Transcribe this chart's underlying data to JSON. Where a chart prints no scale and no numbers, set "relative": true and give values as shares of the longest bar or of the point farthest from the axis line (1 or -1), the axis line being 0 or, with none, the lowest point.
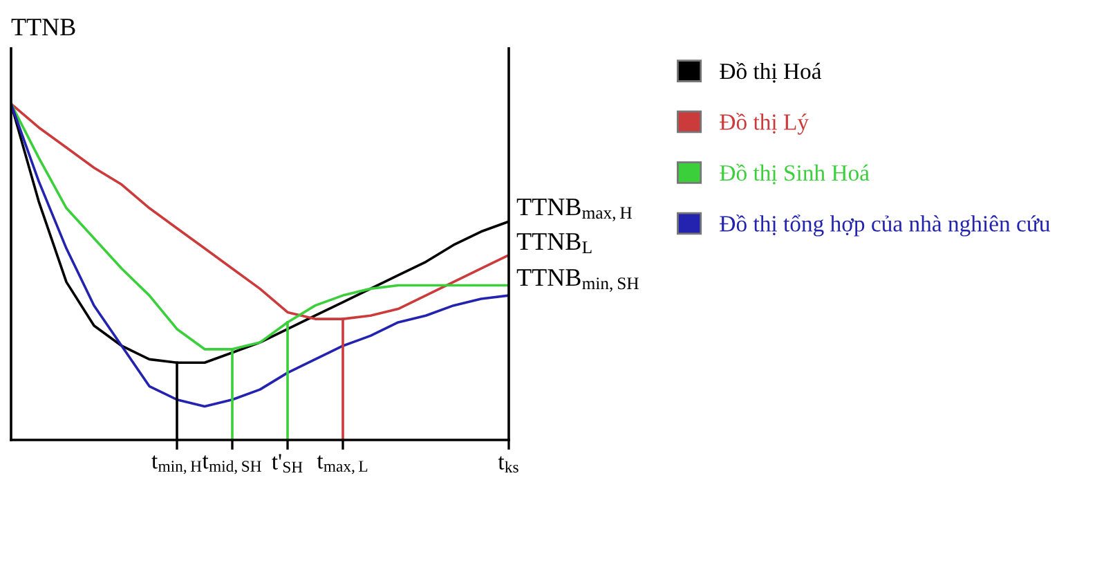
{
  "chart_data": {
    "type": "line",
    "relative": true,
    "ylabel": "TTNB",
    "categories": [
      null,
      null,
      null,
      null,
      null,
      null,
      "t$_{min,H}$",
      null,
      "t$_{mid,SH}$",
      null,
      "t'$_{SH}$",
      null,
      "t$_{max,L}$",
      null,
      null,
      null,
      null,
      null,
      "t$_{ks}$"
    ],
    "series": [
      {
        "name": "Đồ thị Hoá",
        "color": "#000000",
        "values": [
          1.0,
          0.71,
          0.47,
          0.34,
          0.28,
          0.24,
          0.23,
          0.23,
          0.26,
          0.29,
          0.33,
          0.37,
          0.41,
          0.45,
          0.49,
          0.53,
          0.58,
          0.62,
          0.65
        ]
      },
      {
        "name": "Đồ thị Lý",
        "color": "#cc3b3b",
        "values": [
          1.0,
          0.93,
          0.87,
          0.81,
          0.76,
          0.69,
          0.63,
          0.57,
          0.51,
          0.45,
          0.38,
          0.36,
          0.36,
          0.37,
          0.39,
          0.43,
          0.47,
          0.51,
          0.55
        ]
      },
      {
        "name": "Đồ thị Sinh Hoá",
        "color": "#3ccf3c",
        "values": [
          1.0,
          0.84,
          0.69,
          0.6,
          0.51,
          0.43,
          0.33,
          0.27,
          0.27,
          0.29,
          0.35,
          0.4,
          0.43,
          0.45,
          0.46,
          0.46,
          0.46,
          0.46,
          0.46
        ]
      },
      {
        "name": "Đồ thị tổng hợp của nhà nghiên cứu",
        "color": "#2323b0",
        "values": [
          1.0,
          0.77,
          0.57,
          0.4,
          0.28,
          0.16,
          0.12,
          0.1,
          0.12,
          0.15,
          0.2,
          0.24,
          0.28,
          0.31,
          0.35,
          0.37,
          0.4,
          0.42,
          0.43
        ]
      }
    ],
    "ref_lines": [
      {
        "axis": "x",
        "value": "t$_{min,H}$",
        "color": "#000000"
      },
      {
        "axis": "x",
        "value": "t$_{mid,SH}$",
        "color": "#3ccf3c"
      },
      {
        "axis": "x",
        "value": "t'$_{SH}$",
        "color": "#3ccf3c"
      },
      {
        "axis": "x",
        "value": "t$_{max,L}$",
        "color": "#cc3b3b"
      }
    ],
    "annotations": [
      {
        "text": "TTNB$_{max,H}$",
        "x": "t$_{ks}$",
        "y": 0.65
      },
      {
        "text": "TTNB$_{L}$",
        "x": "t$_{ks}$",
        "y": 0.55
      },
      {
        "text": "TTNB$_{min,SH}$",
        "x": "t$_{ks}$",
        "y": 0.44
      }
    ],
    "legend": "right",
    "grid": false,
    "marker": "none",
    "line_style": "solid"
  }
}
